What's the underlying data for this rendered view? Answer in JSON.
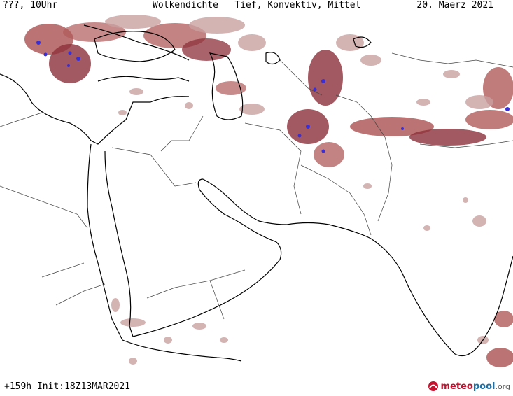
{
  "header": {
    "left": "???, 10Uhr",
    "title": "Wolkendichte   Tief, Konvektiv, Mittel",
    "date": "20. Maerz 2021"
  },
  "footer": {
    "run_info": "+159h Init:18Z13MAR2021",
    "logo_main": "meteo",
    "logo_second": "pool",
    "logo_suffix": ".org"
  },
  "colors": {
    "cloud_low": "#c9a0a0",
    "cloud_mid": "#b05a5a",
    "cloud_high": "#8c2f3a",
    "convective": "#3a2fd6",
    "coast": "#000000",
    "border": "#444444",
    "background": "#ffffff"
  }
}
